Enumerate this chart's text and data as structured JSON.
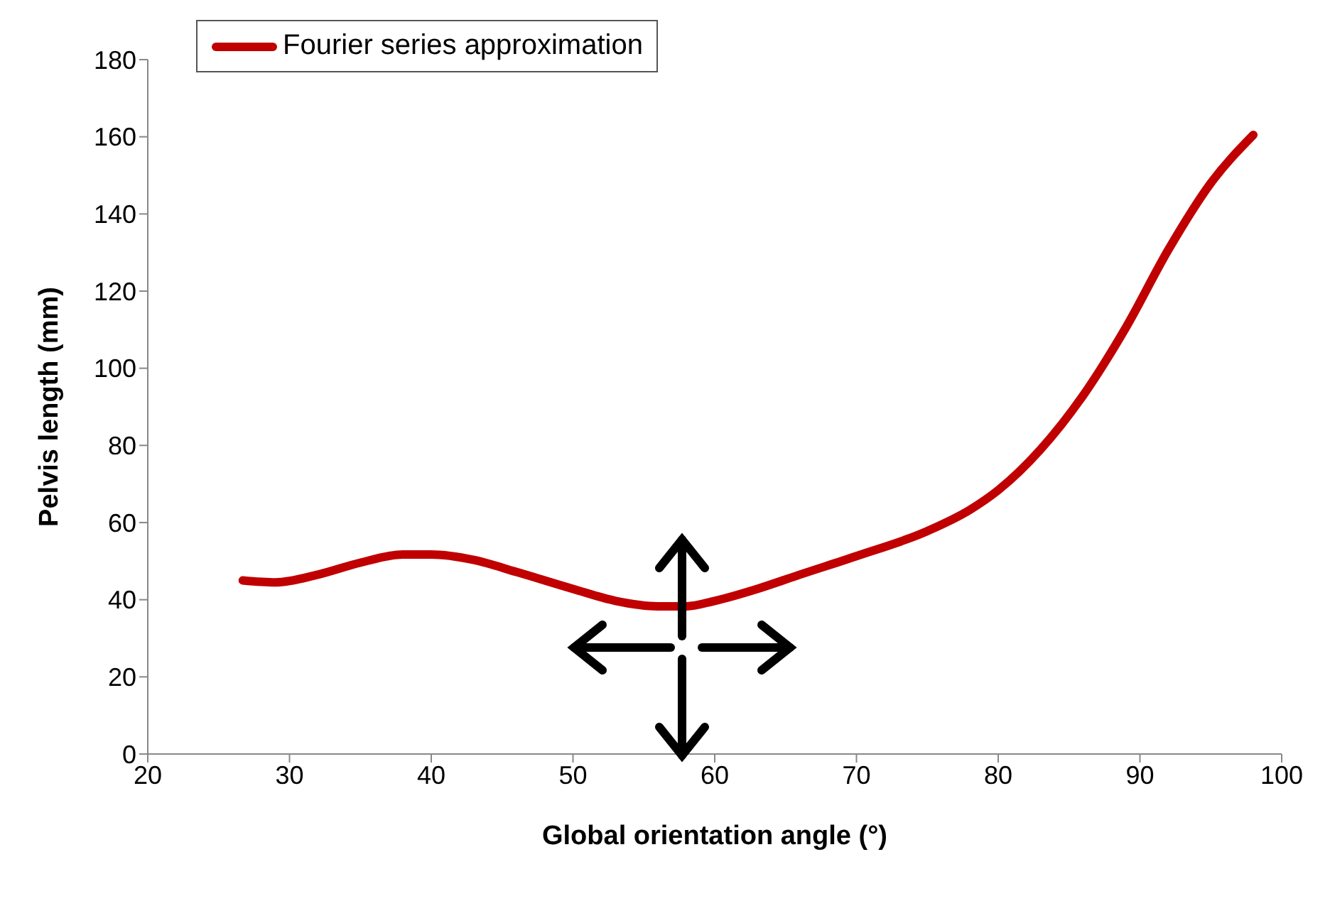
{
  "chart_data": {
    "type": "line",
    "xlabel": "Global orientation angle (°)",
    "ylabel": "Pelvis length (mm)",
    "x": [
      26.7,
      29,
      32,
      35,
      38,
      40,
      43,
      46,
      50,
      53,
      56,
      58,
      60,
      63,
      66,
      70,
      75,
      78,
      80,
      83,
      86,
      89,
      92,
      95,
      98
    ],
    "series": [
      {
        "name": "Fourier series approximation",
        "color": "#c00000",
        "values": [
          45,
          44.5,
          46.5,
          49.6,
          51.7,
          51.7,
          50.3,
          47.2,
          42.8,
          39.7,
          38.3,
          38.3,
          39.7,
          42.8,
          46.5,
          51.3,
          57.8,
          63.3,
          68.4,
          79,
          93,
          110.5,
          130.7,
          148,
          160.5
        ]
      }
    ],
    "xlim": [
      20,
      100
    ],
    "xticks": [
      20,
      30,
      40,
      50,
      60,
      70,
      80,
      90,
      100
    ],
    "ylim": [
      0,
      180
    ],
    "yticks": [
      0,
      20,
      40,
      60,
      80,
      100,
      120,
      140,
      160,
      180
    ],
    "grid": false,
    "legend": "top left",
    "marker": "none",
    "line_style": "solid"
  }
}
